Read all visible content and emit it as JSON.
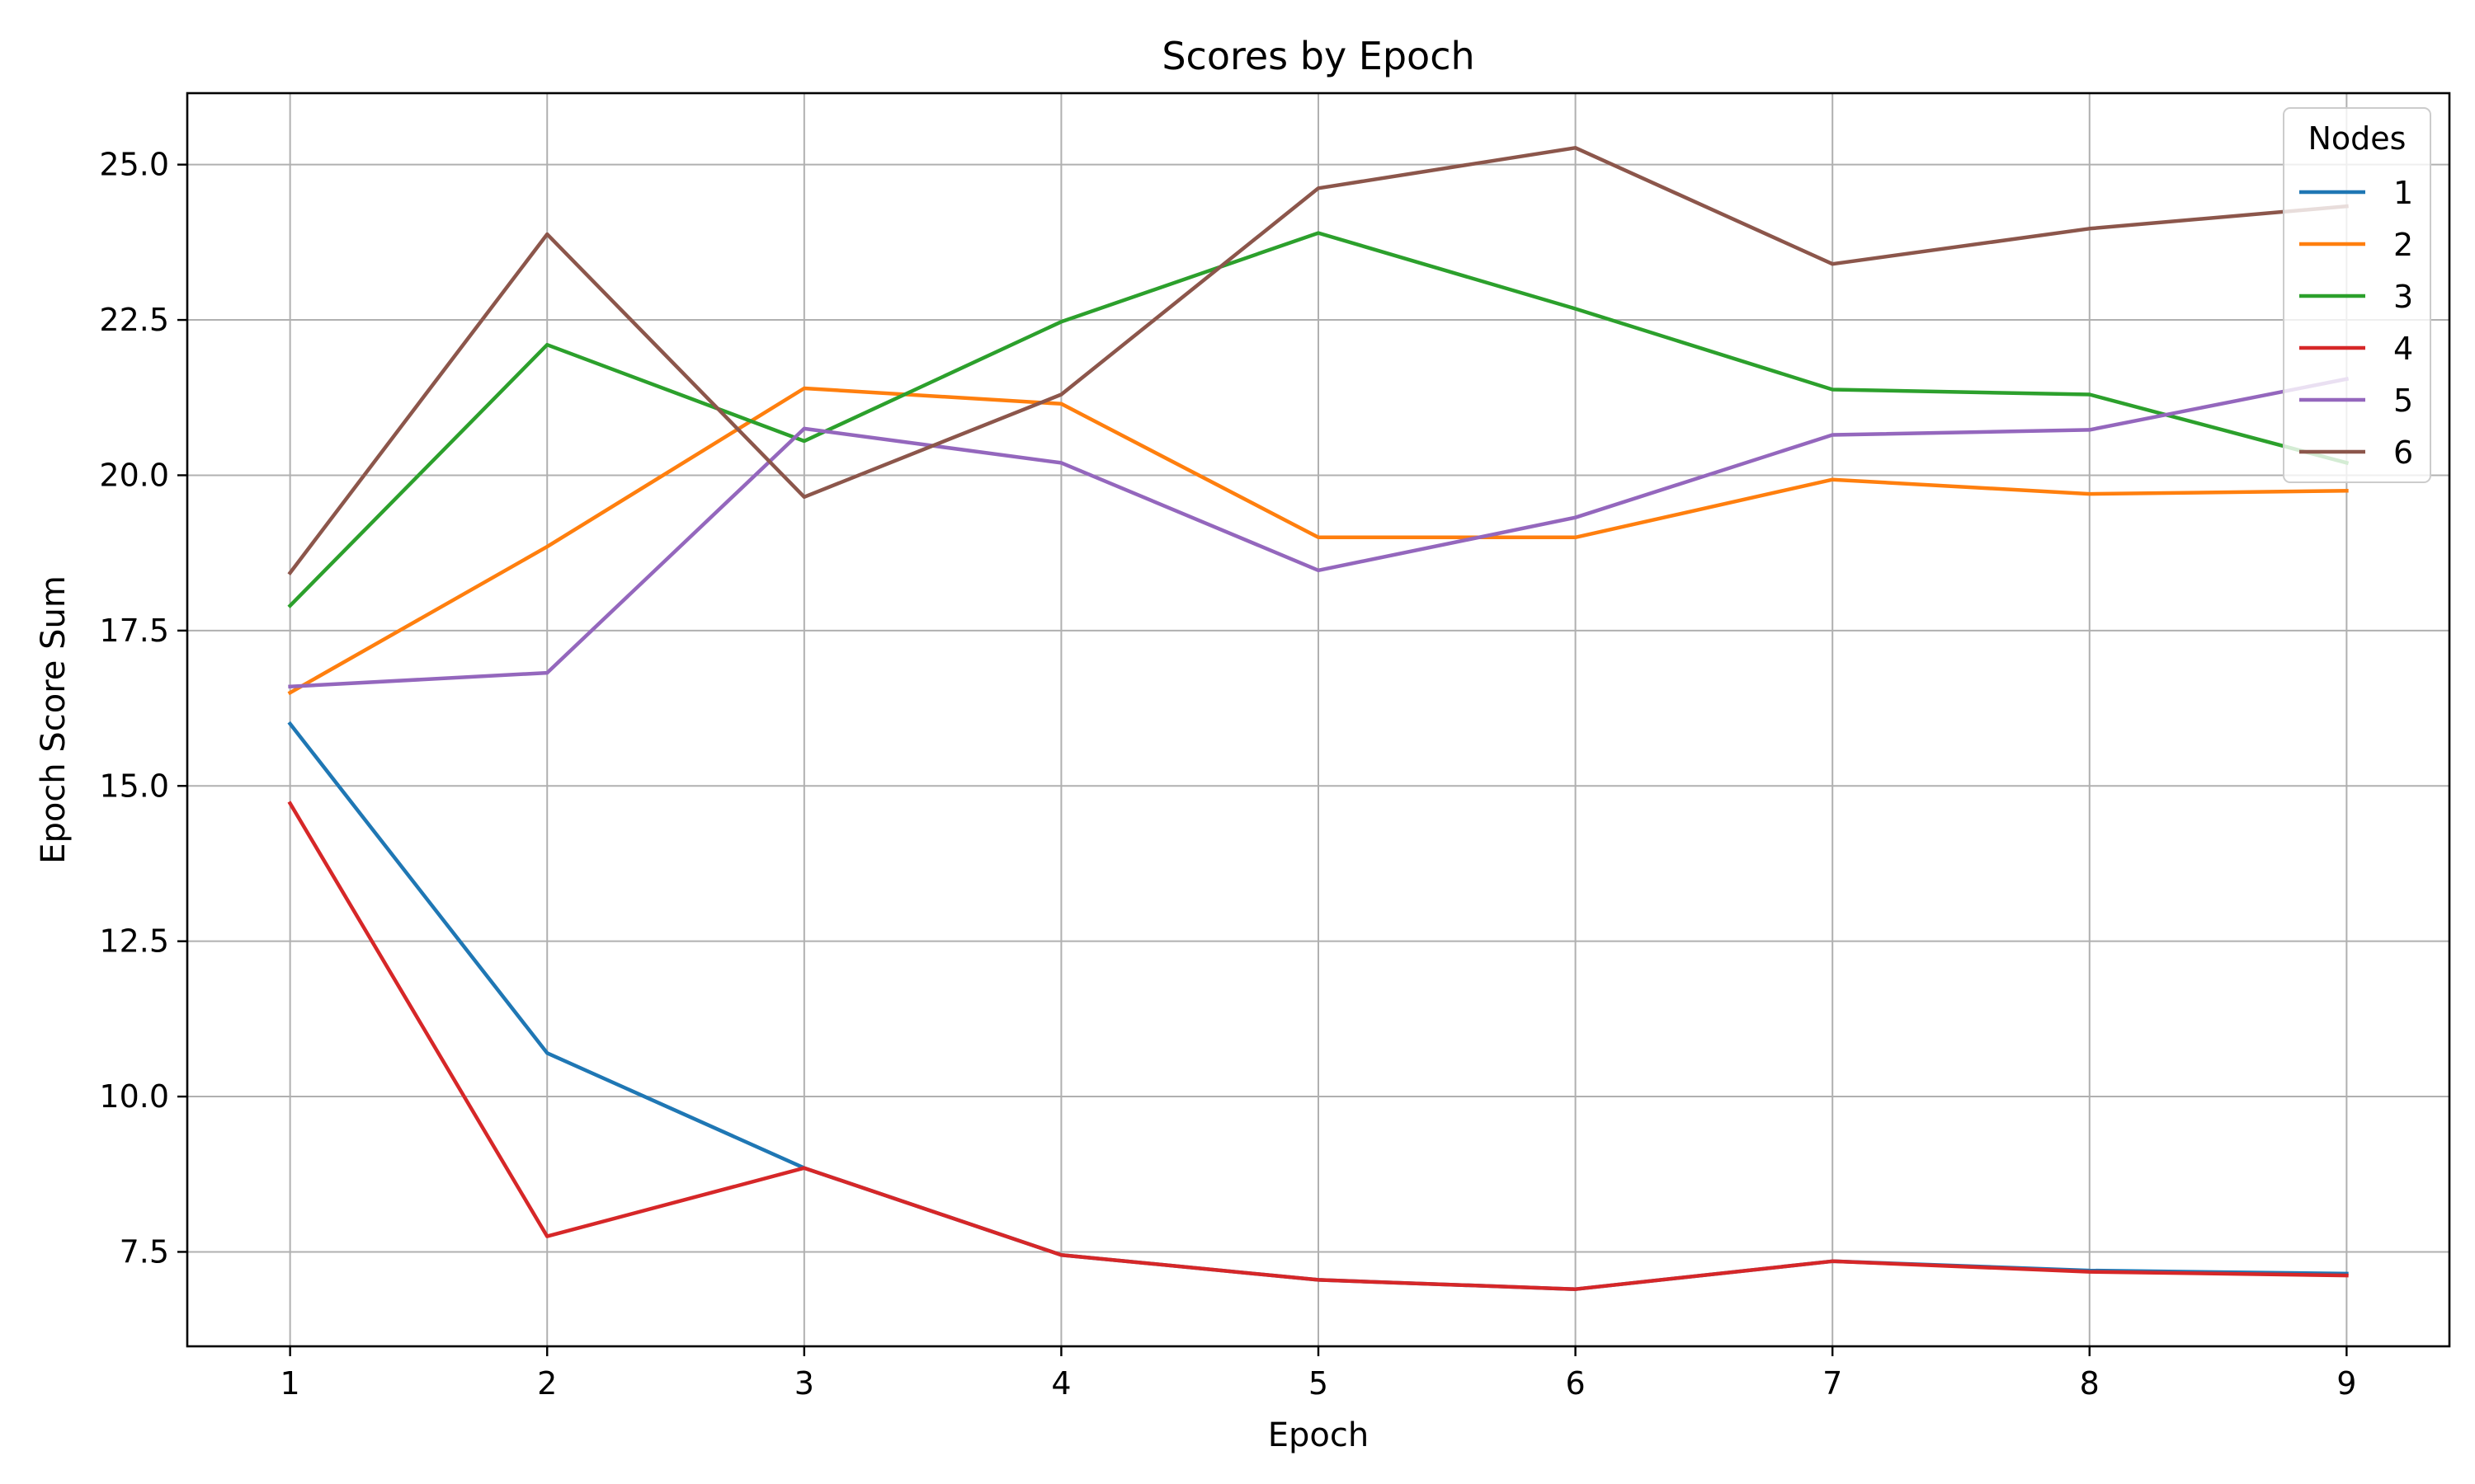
{
  "chart_data": {
    "type": "line",
    "title": "Scores by Epoch",
    "xlabel": "Epoch",
    "ylabel": "Epoch Score Sum",
    "x": [
      1,
      2,
      3,
      4,
      5,
      6,
      7,
      8,
      9
    ],
    "x_ticks": [
      "1",
      "2",
      "3",
      "4",
      "5",
      "6",
      "7",
      "8",
      "9"
    ],
    "xlim": [
      0.6,
      9.4
    ],
    "ylim": [
      5.98,
      26.15
    ],
    "y_ticks": [
      "7.5",
      "10.0",
      "12.5",
      "15.0",
      "17.5",
      "20.0",
      "22.5",
      "25.0"
    ],
    "y_tick_values": [
      7.5,
      10.0,
      12.5,
      15.0,
      17.5,
      20.0,
      22.5,
      25.0
    ],
    "grid": true,
    "legend": {
      "title": "Nodes",
      "placement": "top-right"
    },
    "series": [
      {
        "name": "1",
        "color": "#1f77b4",
        "values": [
          16.0,
          10.7,
          8.85,
          7.45,
          7.05,
          6.9,
          7.35,
          7.2,
          7.15
        ]
      },
      {
        "name": "2",
        "color": "#ff7f0e",
        "values": [
          16.5,
          18.85,
          21.4,
          21.15,
          19.0,
          19.0,
          19.93,
          19.7,
          19.75
        ]
      },
      {
        "name": "3",
        "color": "#2ca02c",
        "values": [
          17.9,
          22.1,
          20.55,
          22.47,
          23.9,
          22.68,
          21.38,
          21.3,
          20.2
        ]
      },
      {
        "name": "4",
        "color": "#d62728",
        "values": [
          14.72,
          7.75,
          8.85,
          7.45,
          7.05,
          6.9,
          7.35,
          7.18,
          7.12
        ]
      },
      {
        "name": "5",
        "color": "#9467bd",
        "values": [
          16.6,
          16.82,
          20.75,
          20.2,
          18.47,
          19.32,
          20.65,
          20.73,
          21.55
        ]
      },
      {
        "name": "6",
        "color": "#8c564b",
        "values": [
          18.43,
          23.88,
          19.65,
          21.3,
          24.62,
          25.27,
          23.4,
          23.97,
          24.33
        ]
      }
    ]
  }
}
